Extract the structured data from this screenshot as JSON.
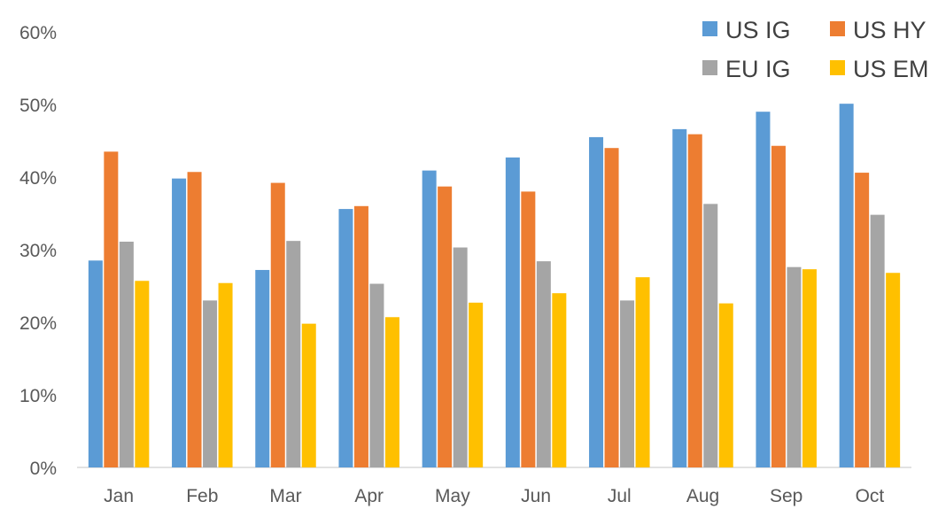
{
  "chart_data": {
    "type": "bar",
    "title": "",
    "xlabel": "",
    "ylabel": "",
    "categories": [
      "Jan",
      "Feb",
      "Mar",
      "Apr",
      "May",
      "Jun",
      "Jul",
      "Aug",
      "Sep",
      "Oct"
    ],
    "series": [
      {
        "name": "US IG",
        "color": "#5B9BD5",
        "values": [
          28.5,
          39.8,
          27.2,
          35.6,
          40.9,
          42.7,
          45.5,
          46.6,
          49.0,
          50.1
        ]
      },
      {
        "name": "US HY",
        "color": "#ED7D31",
        "values": [
          43.5,
          40.7,
          39.2,
          36.0,
          38.7,
          38.0,
          44.0,
          45.9,
          44.3,
          40.6
        ]
      },
      {
        "name": "EU IG",
        "color": "#A5A5A5",
        "values": [
          31.1,
          23.0,
          31.2,
          25.3,
          30.3,
          28.4,
          23.0,
          36.3,
          27.6,
          34.8
        ]
      },
      {
        "name": "US EM",
        "color": "#FFC000",
        "values": [
          25.7,
          25.4,
          19.8,
          20.7,
          22.7,
          24.0,
          26.2,
          22.6,
          27.3,
          26.8
        ]
      }
    ],
    "ylim": [
      0,
      60
    ],
    "yticks": [
      "0%",
      "10%",
      "20%",
      "30%",
      "40%",
      "50%",
      "60%"
    ],
    "grid": false,
    "legend": "top-right",
    "axis_color": "#D9D9D9"
  }
}
